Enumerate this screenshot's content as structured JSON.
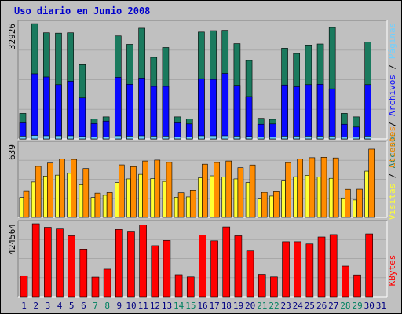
{
  "title": "Uso diario en Junio 2008",
  "colors": {
    "accesos": "#1a7a5e",
    "paginas": "#0a0aff",
    "archivos": "#6fd0ff",
    "clientes": "#ff8c00",
    "visitas": "#ffff33",
    "kbytes": "#ff0000",
    "panel": "#c0c0c0",
    "axis_label_default": "#008060",
    "axis_label_weekday": "#000080"
  },
  "right_labels": {
    "top": [
      "Accesos",
      "/",
      "Archivos",
      "/",
      "Páginas"
    ],
    "middle": [
      "Visitas",
      "/",
      "Clientes"
    ],
    "bottom": [
      "KBytes"
    ]
  },
  "chart_data": [
    {
      "type": "bar",
      "panel": "top",
      "ylabel": "32926",
      "ylim": [
        0,
        32926
      ],
      "categories": [
        "1",
        "2",
        "3",
        "4",
        "5",
        "6",
        "7",
        "8",
        "9",
        "10",
        "11",
        "12",
        "13",
        "14",
        "15",
        "16",
        "17",
        "18",
        "19",
        "20",
        "21",
        "22",
        "23",
        "24",
        "25",
        "26",
        "27",
        "28",
        "29",
        "30",
        "31"
      ],
      "series": [
        {
          "name": "Accesos",
          "values": [
            7300,
            32900,
            30300,
            30200,
            30300,
            21200,
            5700,
            6300,
            29400,
            27000,
            31600,
            23300,
            26100,
            6300,
            5700,
            30500,
            30900,
            31000,
            27200,
            22400,
            5900,
            5600,
            25900,
            24400,
            26800,
            27100,
            31800,
            7300,
            6300,
            27700,
            0
          ]
        },
        {
          "name": "Páginas",
          "values": [
            4600,
            18600,
            17700,
            15500,
            16500,
            11700,
            4400,
            5100,
            17600,
            15600,
            17400,
            15000,
            15000,
            4600,
            4300,
            17200,
            17000,
            18700,
            15300,
            12100,
            4200,
            4300,
            15400,
            14900,
            15500,
            15600,
            14300,
            4200,
            3400,
            15500,
            0
          ]
        },
        {
          "name": "Archivos",
          "values": [
            800,
            1000,
            900,
            900,
            900,
            700,
            600,
            600,
            900,
            800,
            900,
            800,
            800,
            600,
            600,
            900,
            900,
            900,
            800,
            700,
            500,
            500,
            800,
            800,
            800,
            800,
            800,
            500,
            500,
            800,
            0
          ]
        }
      ]
    },
    {
      "type": "bar",
      "panel": "middle",
      "ylabel": "639",
      "ylim": [
        0,
        639
      ],
      "categories": [
        "1",
        "2",
        "3",
        "4",
        "5",
        "6",
        "7",
        "8",
        "9",
        "10",
        "11",
        "12",
        "13",
        "14",
        "15",
        "16",
        "17",
        "18",
        "19",
        "20",
        "21",
        "22",
        "23",
        "24",
        "25",
        "26",
        "27",
        "28",
        "29",
        "30",
        "31"
      ],
      "series": [
        {
          "name": "Visitas",
          "values": [
            174,
            310,
            362,
            370,
            386,
            286,
            174,
            193,
            305,
            337,
            377,
            340,
            315,
            176,
            179,
            346,
            364,
            355,
            337,
            305,
            167,
            186,
            325,
            356,
            368,
            355,
            342,
            170,
            152,
            405,
            0
          ]
        },
        {
          "name": "Clientes",
          "values": [
            233,
            447,
            476,
            511,
            508,
            428,
            212,
            217,
            460,
            445,
            494,
            502,
            482,
            215,
            238,
            466,
            481,
            494,
            435,
            459,
            219,
            231,
            480,
            513,
            523,
            527,
            521,
            246,
            247,
            598,
            0
          ]
        }
      ]
    },
    {
      "type": "bar",
      "panel": "bottom",
      "ylabel": "424564",
      "ylim": [
        0,
        424564
      ],
      "categories": [
        "1",
        "2",
        "3",
        "4",
        "5",
        "6",
        "7",
        "8",
        "9",
        "10",
        "11",
        "12",
        "13",
        "14",
        "15",
        "16",
        "17",
        "18",
        "19",
        "20",
        "21",
        "22",
        "23",
        "24",
        "25",
        "26",
        "27",
        "28",
        "29",
        "30",
        "31"
      ],
      "series": [
        {
          "name": "KBytes",
          "values": [
            122000,
            424564,
            404000,
            394000,
            354000,
            277000,
            114000,
            160000,
            391000,
            381000,
            418000,
            297000,
            327000,
            128000,
            115000,
            359000,
            325000,
            406000,
            354000,
            266000,
            130000,
            115000,
            320000,
            320000,
            307000,
            347000,
            361000,
            178000,
            127000,
            365000,
            0
          ]
        }
      ]
    }
  ],
  "x_days": [
    {
      "label": "1",
      "weekend": false
    },
    {
      "label": "2",
      "weekend": false
    },
    {
      "label": "3",
      "weekend": false
    },
    {
      "label": "4",
      "weekend": false
    },
    {
      "label": "5",
      "weekend": false
    },
    {
      "label": "6",
      "weekend": false
    },
    {
      "label": "7",
      "weekend": true
    },
    {
      "label": "8",
      "weekend": true
    },
    {
      "label": "9",
      "weekend": false
    },
    {
      "label": "10",
      "weekend": false
    },
    {
      "label": "11",
      "weekend": false
    },
    {
      "label": "12",
      "weekend": false
    },
    {
      "label": "13",
      "weekend": false
    },
    {
      "label": "14",
      "weekend": true
    },
    {
      "label": "15",
      "weekend": true
    },
    {
      "label": "16",
      "weekend": false
    },
    {
      "label": "17",
      "weekend": false
    },
    {
      "label": "18",
      "weekend": false
    },
    {
      "label": "19",
      "weekend": false
    },
    {
      "label": "20",
      "weekend": false
    },
    {
      "label": "21",
      "weekend": true
    },
    {
      "label": "22",
      "weekend": true
    },
    {
      "label": "23",
      "weekend": false
    },
    {
      "label": "24",
      "weekend": false
    },
    {
      "label": "25",
      "weekend": false
    },
    {
      "label": "26",
      "weekend": false
    },
    {
      "label": "27",
      "weekend": false
    },
    {
      "label": "28",
      "weekend": true
    },
    {
      "label": "29",
      "weekend": true
    },
    {
      "label": "30",
      "weekend": false
    },
    {
      "label": "31",
      "weekend": false
    }
  ]
}
